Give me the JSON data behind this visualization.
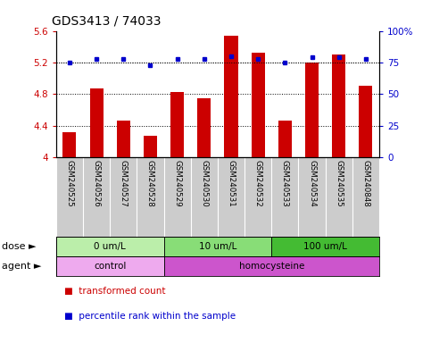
{
  "title": "GDS3413 / 74033",
  "samples": [
    "GSM240525",
    "GSM240526",
    "GSM240527",
    "GSM240528",
    "GSM240529",
    "GSM240530",
    "GSM240531",
    "GSM240532",
    "GSM240533",
    "GSM240534",
    "GSM240535",
    "GSM240848"
  ],
  "transformed_counts": [
    4.32,
    4.87,
    4.46,
    4.27,
    4.83,
    4.75,
    5.54,
    5.32,
    4.46,
    5.2,
    5.3,
    4.9
  ],
  "percentile_ranks": [
    75,
    78,
    78,
    73,
    78,
    78,
    80,
    78,
    75,
    79,
    79,
    78
  ],
  "bar_color": "#cc0000",
  "dot_color": "#0000cc",
  "ylim_left": [
    4.0,
    5.6
  ],
  "ylim_right": [
    0,
    100
  ],
  "yticks_left": [
    4.0,
    4.4,
    4.8,
    5.2,
    5.6
  ],
  "yticks_right": [
    0,
    25,
    50,
    75,
    100
  ],
  "ytick_labels_left": [
    "4",
    "4.4",
    "4.8",
    "5.2",
    "5.6"
  ],
  "ytick_labels_right": [
    "0",
    "25",
    "50",
    "75",
    "100%"
  ],
  "dose_groups": [
    {
      "label": "0 um/L",
      "start": 0,
      "end": 4,
      "color": "#bbeeaa"
    },
    {
      "label": "10 um/L",
      "start": 4,
      "end": 8,
      "color": "#88dd77"
    },
    {
      "label": "100 um/L",
      "start": 8,
      "end": 12,
      "color": "#44bb33"
    }
  ],
  "agent_groups": [
    {
      "label": "control",
      "start": 0,
      "end": 4,
      "color": "#eeaaee"
    },
    {
      "label": "homocysteine",
      "start": 4,
      "end": 12,
      "color": "#cc55cc"
    }
  ],
  "dose_label": "dose",
  "agent_label": "agent",
  "legend_bar_label": "transformed count",
  "legend_dot_label": "percentile rank within the sample",
  "bg_color": "#ffffff",
  "plot_bg": "#ffffff",
  "sample_bg": "#cccccc",
  "grid_color": "#000000"
}
